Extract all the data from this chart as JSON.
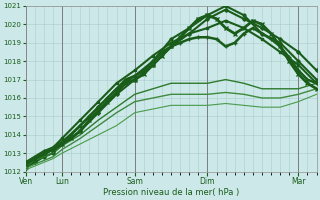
{
  "xlabel": "Pression niveau de la mer( hPa )",
  "bg_color": "#cce8e8",
  "grid_color": "#aacccc",
  "dark_green": "#1a5c1a",
  "mid_green": "#2d7a2d",
  "light_green": "#5aaa5a",
  "ylim": [
    1012,
    1021
  ],
  "xlim": [
    0,
    96
  ],
  "yticks": [
    1012,
    1013,
    1014,
    1015,
    1016,
    1017,
    1018,
    1019,
    1020,
    1021
  ],
  "xtick_positions": [
    0,
    12,
    36,
    60,
    90
  ],
  "xtick_labels": [
    "Ven",
    "Lun",
    "Sam",
    "Dim",
    "Mar"
  ],
  "lines": [
    {
      "x": [
        0,
        3,
        6,
        9,
        12,
        18,
        24,
        30,
        36,
        42,
        48,
        54,
        60,
        66,
        72,
        78,
        84,
        90,
        96
      ],
      "y": [
        1012.2,
        1012.5,
        1012.8,
        1013.0,
        1013.5,
        1014.2,
        1015.2,
        1016.2,
        1017.0,
        1017.8,
        1018.8,
        1019.5,
        1020.3,
        1020.8,
        1020.3,
        1019.8,
        1019.2,
        1018.5,
        1017.5
      ],
      "color": "#1a5c1a",
      "lw": 1.5,
      "ls": "-",
      "marker": "D",
      "ms": 1.8
    },
    {
      "x": [
        0,
        3,
        6,
        9,
        12,
        18,
        24,
        30,
        36,
        42,
        48,
        54,
        60,
        66,
        72,
        78,
        84,
        90,
        96
      ],
      "y": [
        1012.3,
        1012.6,
        1012.9,
        1013.2,
        1013.6,
        1014.5,
        1015.5,
        1016.5,
        1017.2,
        1018.0,
        1019.2,
        1019.8,
        1020.5,
        1021.0,
        1020.5,
        1019.5,
        1019.0,
        1018.0,
        1017.0
      ],
      "color": "#1a5c1a",
      "lw": 1.5,
      "ls": "-",
      "marker": "o",
      "ms": 2.0
    },
    {
      "x": [
        0,
        3,
        6,
        9,
        12,
        18,
        24,
        30,
        36,
        42,
        48,
        54,
        60,
        66,
        72,
        78,
        84,
        90,
        96
      ],
      "y": [
        1012.4,
        1012.7,
        1013.0,
        1013.3,
        1013.8,
        1014.8,
        1015.8,
        1016.8,
        1017.5,
        1018.3,
        1019.0,
        1019.5,
        1019.8,
        1020.2,
        1019.8,
        1019.2,
        1018.5,
        1017.8,
        1016.8
      ],
      "color": "#1a5c1a",
      "lw": 1.5,
      "ls": "-",
      "marker": "s",
      "ms": 2.0
    },
    {
      "x": [
        0,
        3,
        6,
        9,
        12,
        18,
        24,
        30,
        36,
        42,
        48,
        54,
        60,
        66,
        72,
        78,
        84,
        90,
        96
      ],
      "y": [
        1012.3,
        1012.6,
        1012.8,
        1013.0,
        1013.4,
        1014.0,
        1014.8,
        1015.5,
        1016.2,
        1016.5,
        1016.8,
        1016.8,
        1016.8,
        1017.0,
        1016.8,
        1016.5,
        1016.5,
        1016.5,
        1016.8
      ],
      "color": "#2d7a2d",
      "lw": 1.0,
      "ls": "-",
      "marker": null,
      "ms": 0
    },
    {
      "x": [
        0,
        3,
        6,
        9,
        12,
        18,
        24,
        30,
        36,
        42,
        48,
        54,
        60,
        66,
        72,
        78,
        84,
        90,
        96
      ],
      "y": [
        1012.2,
        1012.4,
        1012.6,
        1012.8,
        1013.2,
        1013.8,
        1014.5,
        1015.2,
        1015.8,
        1016.0,
        1016.2,
        1016.2,
        1016.2,
        1016.3,
        1016.2,
        1016.0,
        1016.0,
        1016.2,
        1016.5
      ],
      "color": "#3d8a3d",
      "lw": 1.0,
      "ls": "-",
      "marker": null,
      "ms": 0
    },
    {
      "x": [
        0,
        3,
        6,
        9,
        12,
        18,
        24,
        30,
        36,
        42,
        48,
        54,
        60,
        66,
        72,
        78,
        84,
        90,
        96
      ],
      "y": [
        1012.1,
        1012.3,
        1012.5,
        1012.7,
        1013.0,
        1013.5,
        1014.0,
        1014.5,
        1015.2,
        1015.4,
        1015.6,
        1015.6,
        1015.6,
        1015.7,
        1015.6,
        1015.5,
        1015.5,
        1015.8,
        1016.2
      ],
      "color": "#4a9a4a",
      "lw": 0.8,
      "ls": "-",
      "marker": null,
      "ms": 0
    },
    {
      "x": [
        0,
        3,
        6,
        9,
        12,
        15,
        18,
        21,
        24,
        27,
        30,
        33,
        36,
        39,
        42,
        45,
        48,
        51,
        54,
        57,
        60,
        63,
        66,
        69,
        72,
        75,
        78,
        81,
        84,
        87,
        90,
        93,
        96
      ],
      "y": [
        1012.5,
        1012.8,
        1013.1,
        1013.3,
        1013.6,
        1014.0,
        1014.5,
        1015.0,
        1015.5,
        1016.0,
        1016.5,
        1017.0,
        1017.2,
        1017.5,
        1018.0,
        1018.5,
        1018.8,
        1019.0,
        1019.2,
        1019.3,
        1019.3,
        1019.2,
        1018.8,
        1019.0,
        1019.5,
        1019.8,
        1019.5,
        1019.2,
        1018.8,
        1018.2,
        1017.5,
        1017.0,
        1016.8
      ],
      "color": "#1a5c1a",
      "lw": 1.8,
      "ls": "-",
      "marker": "+",
      "ms": 2.5
    },
    {
      "x": [
        0,
        3,
        6,
        9,
        12,
        15,
        18,
        21,
        24,
        27,
        30,
        33,
        36,
        39,
        42,
        45,
        48,
        51,
        54,
        57,
        60,
        63,
        66,
        69,
        72,
        75,
        78,
        81,
        84,
        87,
        90,
        93,
        96
      ],
      "y": [
        1012.4,
        1012.7,
        1013.0,
        1013.2,
        1013.5,
        1013.8,
        1014.2,
        1014.8,
        1015.3,
        1015.8,
        1016.3,
        1016.8,
        1017.0,
        1017.3,
        1017.8,
        1018.3,
        1018.8,
        1019.3,
        1019.8,
        1020.3,
        1020.5,
        1020.3,
        1019.8,
        1019.5,
        1019.8,
        1020.2,
        1020.0,
        1019.5,
        1018.8,
        1018.0,
        1017.3,
        1016.8,
        1016.5
      ],
      "color": "#1a5c1a",
      "lw": 2.0,
      "ls": "-",
      "marker": "x",
      "ms": 2.5
    }
  ]
}
